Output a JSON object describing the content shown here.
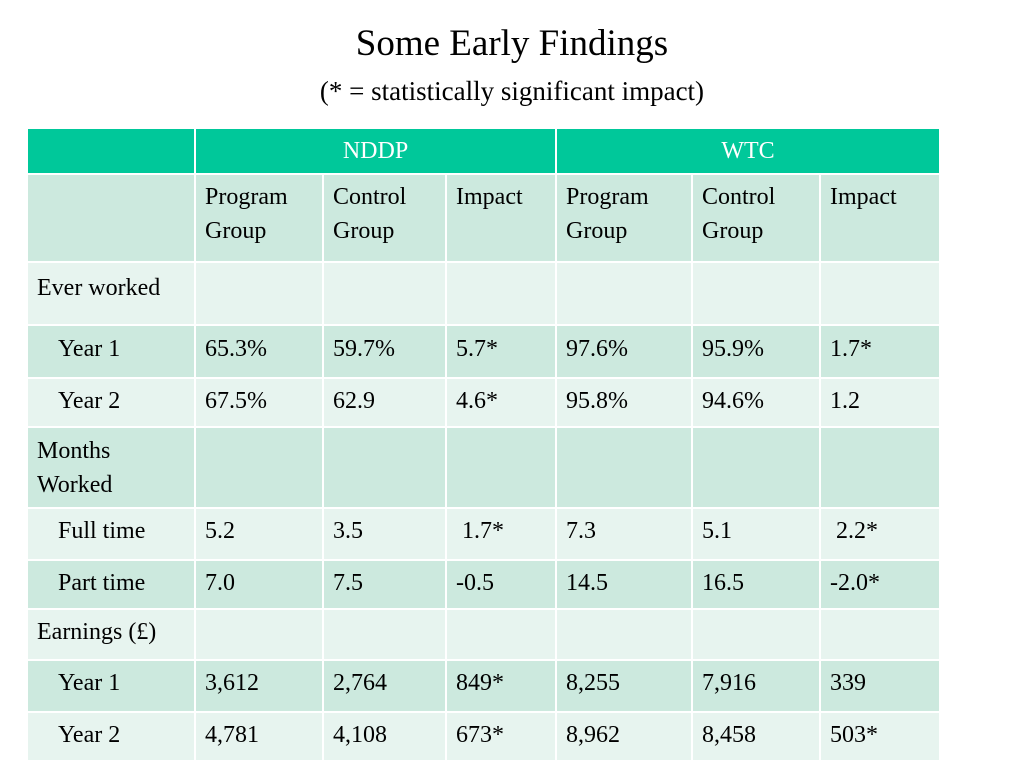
{
  "title": "Some Early Findings",
  "subtitle": "(* = statistically significant impact)",
  "colors": {
    "header_green": "#00c89a",
    "row_light": "#e7f4ef",
    "row_dark": "#cce9de"
  },
  "table": {
    "groups": [
      "NDDP",
      "WTC"
    ],
    "subheaders": [
      "Program Group",
      "Control Group",
      "Impact",
      "Program Group",
      "Control Group",
      "Impact"
    ],
    "rows": [
      {
        "label": "Ever worked",
        "cells": [
          "",
          "",
          "",
          "",
          "",
          ""
        ]
      },
      {
        "label": "Year 1",
        "cells": [
          "65.3%",
          "59.7%",
          "5.7*",
          "97.6%",
          "95.9%",
          "1.7*"
        ]
      },
      {
        "label": "Year 2",
        "cells": [
          "67.5%",
          "62.9",
          "4.6*",
          "95.8%",
          "94.6%",
          "1.2"
        ]
      },
      {
        "label": "Months Worked",
        "cells": [
          "",
          "",
          "",
          "",
          "",
          ""
        ]
      },
      {
        "label": "Full time",
        "cells": [
          "5.2",
          "3.5",
          " 1.7*",
          "7.3",
          "5.1",
          " 2.2*"
        ]
      },
      {
        "label": "Part time",
        "cells": [
          "7.0",
          "7.5",
          "-0.5",
          "14.5",
          "16.5",
          "-2.0*"
        ]
      },
      {
        "label": "Earnings (£)",
        "cells": [
          "",
          "",
          "",
          "",
          "",
          ""
        ]
      },
      {
        "label": "Year 1",
        "cells": [
          "3,612",
          "2,764",
          "849*",
          "8,255",
          "7,916",
          "339"
        ]
      },
      {
        "label": "Year 2",
        "cells": [
          "4,781",
          "4,108",
          "673*",
          "8,962",
          "8,458",
          "503*"
        ]
      }
    ]
  }
}
